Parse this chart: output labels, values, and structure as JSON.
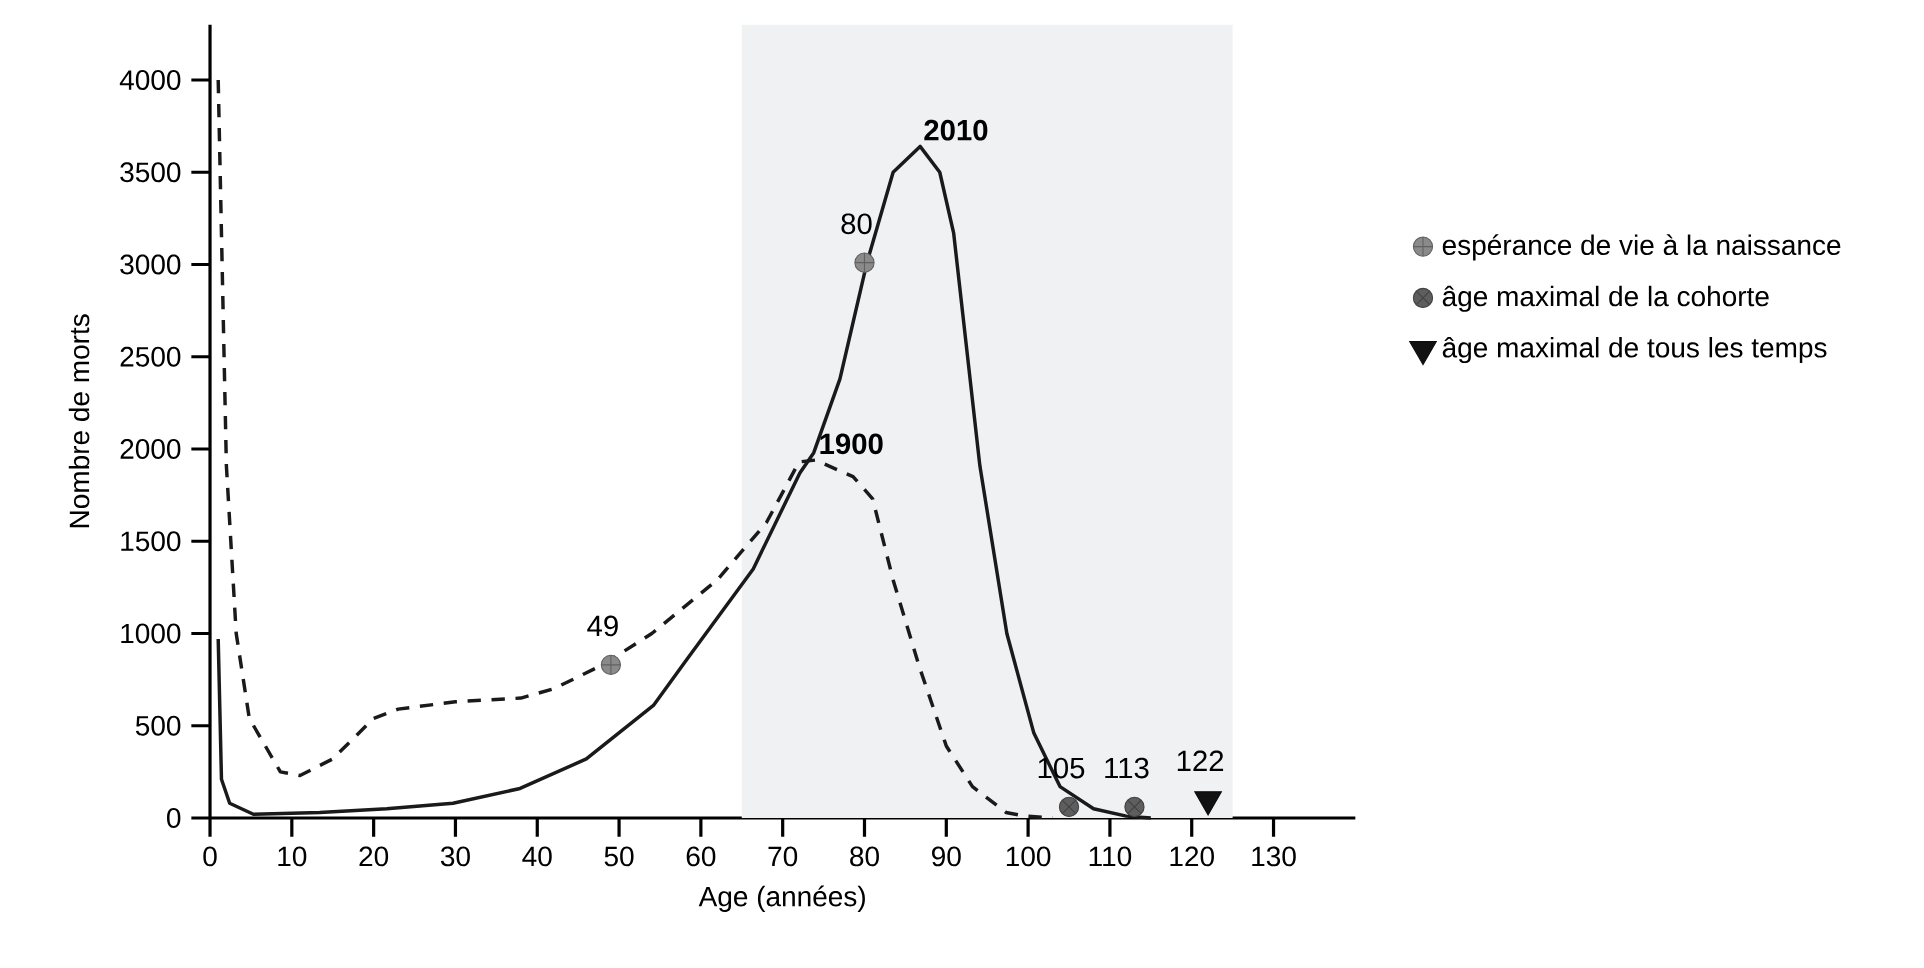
{
  "chart_data": {
    "type": "line",
    "xlabel": "Age (années)",
    "ylabel": "Nombre de morts",
    "xlim": [
      0,
      140
    ],
    "ylim": [
      0,
      4300
    ],
    "xticks": [
      0,
      10,
      20,
      30,
      40,
      50,
      60,
      70,
      80,
      90,
      100,
      110,
      120,
      130
    ],
    "yticks": [
      0,
      500,
      1000,
      1500,
      2000,
      2500,
      3000,
      3500,
      4000
    ],
    "legend": "right",
    "grid": false,
    "bands": [
      {
        "axis": "x",
        "from": 65,
        "to": 125,
        "color": "#f0f1f3"
      }
    ],
    "series": [
      {
        "name": "1900",
        "line_style": "dashed",
        "color": "#1a1a1a",
        "x": [
          1,
          2,
          3.2,
          4.8,
          8.6,
          11,
          15,
          20,
          23,
          30,
          38,
          42,
          48,
          54,
          62,
          68,
          72,
          74,
          78.6,
          81,
          83.5,
          86.7,
          90,
          93.2,
          97.3,
          99.7,
          103
        ],
        "values": [
          4000,
          1910,
          1000,
          540,
          250,
          230,
          320,
          540,
          590,
          630,
          650,
          700,
          830,
          1000,
          1290,
          1600,
          1930,
          1940,
          1850,
          1730,
          1290,
          820,
          390,
          170,
          30,
          10,
          0
        ]
      },
      {
        "name": "2010",
        "line_style": "solid",
        "color": "#1a1a1a",
        "x": [
          1,
          1.4,
          2.4,
          5.3,
          13.4,
          21.6,
          29.7,
          37.9,
          46,
          54.2,
          58.3,
          66.4,
          72.1,
          73.8,
          77,
          80.3,
          83.5,
          86.8,
          89.2,
          90.9,
          94.1,
          97.4,
          100.7,
          103.9,
          108,
          112,
          115
        ],
        "values": [
          970,
          210,
          80,
          20,
          30,
          50,
          80,
          160,
          320,
          610,
          860,
          1350,
          1870,
          1980,
          2380,
          3010,
          3500,
          3640,
          3500,
          3170,
          1910,
          1000,
          460,
          170,
          50,
          10,
          0
        ]
      },
      {
        "name": "espérance de vie à la naissance",
        "type": "scatter",
        "marker": "cross",
        "color": "#8a8a8a",
        "x": [
          49,
          80
        ],
        "values": [
          830,
          3010
        ]
      },
      {
        "name": "âge maximal de la cohorte",
        "type": "scatter",
        "marker": "cross",
        "color": "#5e5e5e",
        "x": [
          105,
          113
        ],
        "values": [
          60,
          60
        ]
      },
      {
        "name": "âge maximal de tous les temps",
        "type": "scatter",
        "marker": "triangle",
        "color": "#111111",
        "x": [
          122
        ],
        "values": [
          100
        ]
      }
    ],
    "annotations": [
      {
        "text": "49",
        "x": 49,
        "y": 830
      },
      {
        "text": "80",
        "x": 80,
        "y": 3010
      },
      {
        "text": "105",
        "x": 105,
        "y": 60
      },
      {
        "text": "113",
        "x": 113,
        "y": 60
      },
      {
        "text": "122",
        "x": 122,
        "y": 100
      }
    ]
  }
}
